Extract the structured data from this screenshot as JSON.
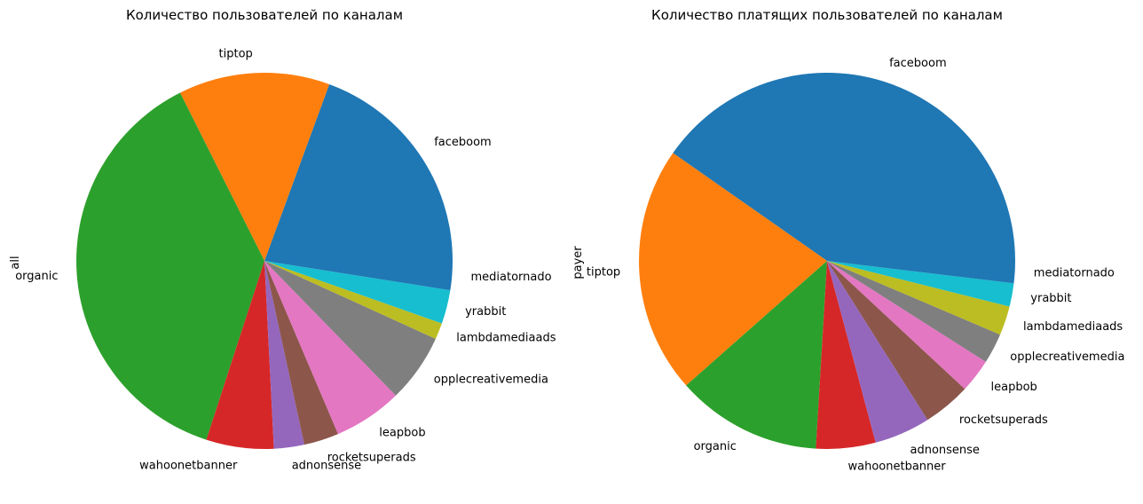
{
  "chart_data": [
    {
      "type": "pie",
      "title": "Количество пользователей по каналам",
      "ylabel": "all",
      "start_angle_deg": 0,
      "direction": "counterclockwise",
      "categories": [
        "faceboom",
        "tiptop",
        "organic",
        "wahoonetbanner",
        "adnonsense",
        "rocketsuperads",
        "leapbob",
        "opplecreativemedia",
        "lambdamediaads",
        "yrabbit",
        "mediatornado"
      ],
      "values": [
        19.4,
        13.0,
        37.6,
        5.8,
        2.6,
        3.0,
        5.9,
        5.9,
        1.4,
        2.9,
        2.5
      ],
      "colors": [
        "#1f77b4",
        "#ff7f0e",
        "#2ca02c",
        "#d62728",
        "#9467bd",
        "#8c564b",
        "#e377c2",
        "#7f7f7f",
        "#bcbd22",
        "#17becf",
        "#1f77b4"
      ]
    },
    {
      "type": "pie",
      "title": "Количество платящих пользователей по каналам",
      "ylabel": "payer",
      "start_angle_deg": 0,
      "direction": "counterclockwise",
      "categories": [
        "faceboom",
        "tiptop",
        "organic",
        "wahoonetbanner",
        "adnonsense",
        "rocketsuperads",
        "leapbob",
        "opplecreativemedia",
        "lambdamediaads",
        "yrabbit",
        "mediatornado"
      ],
      "values": [
        40.2,
        21.2,
        12.5,
        5.1,
        4.8,
        4.1,
        2.9,
        2.6,
        2.5,
        2.0,
        1.9
      ],
      "colors": [
        "#1f77b4",
        "#ff7f0e",
        "#2ca02c",
        "#d62728",
        "#9467bd",
        "#8c564b",
        "#e377c2",
        "#7f7f7f",
        "#bcbd22",
        "#17becf",
        "#1f77b4"
      ]
    }
  ]
}
